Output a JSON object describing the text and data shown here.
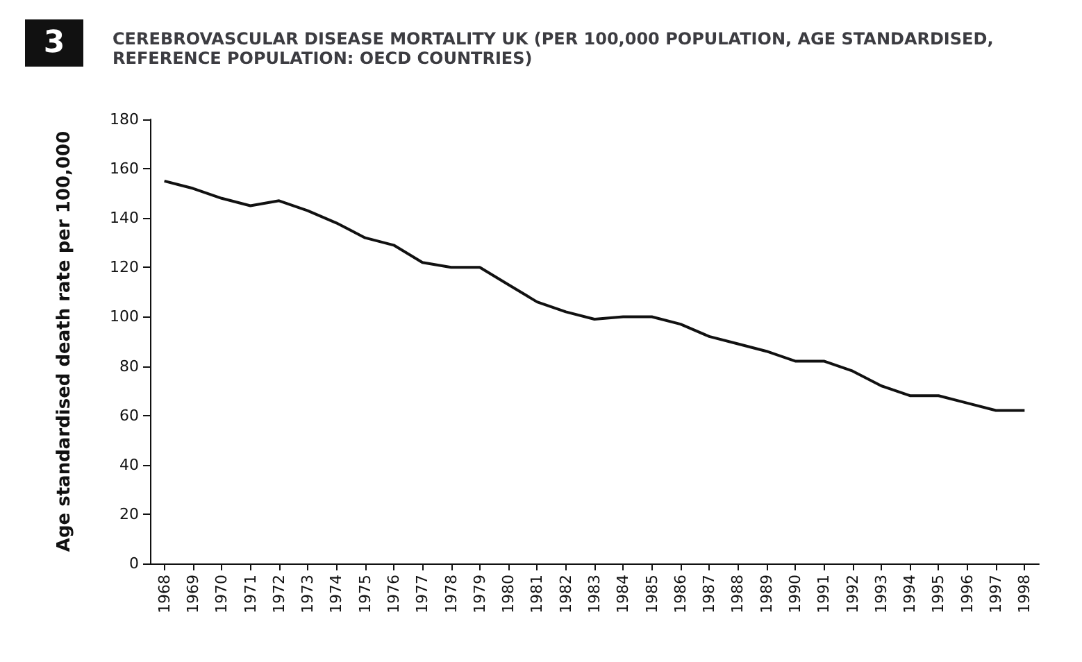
{
  "chart_data": {
    "type": "line",
    "title": "CEREBROVASCULAR DISEASE MORTALITY UK (PER 100,000 POPULATION, AGE STANDARDISED, REFERENCE POPULATION: OECD COUNTRIES)",
    "annotations": [
      "3"
    ],
    "ylabel": "Age standardised death rate per 100,000",
    "categories": [
      "1968",
      "1969",
      "1970",
      "1971",
      "1972",
      "1973",
      "1974",
      "1975",
      "1976",
      "1977",
      "1978",
      "1979",
      "1980",
      "1981",
      "1982",
      "1983",
      "1984",
      "1985",
      "1986",
      "1987",
      "1988",
      "1989",
      "1990",
      "1991",
      "1992",
      "1993",
      "1994",
      "1995",
      "1996",
      "1997",
      "1998"
    ],
    "series": [
      {
        "color": "#111111",
        "values": [
          155,
          152,
          148,
          145,
          147,
          143,
          138,
          132,
          129,
          122,
          120,
          120,
          113,
          106,
          102,
          99,
          100,
          100,
          97,
          92,
          89,
          86,
          82,
          82,
          78,
          72,
          68,
          68,
          65,
          62,
          62
        ]
      }
    ],
    "ylim": [
      0,
      180
    ],
    "yticks": [
      0,
      20,
      40,
      60,
      80,
      100,
      120,
      140,
      160,
      180
    ],
    "grid": false,
    "marker": "none",
    "line_style": "solid"
  }
}
